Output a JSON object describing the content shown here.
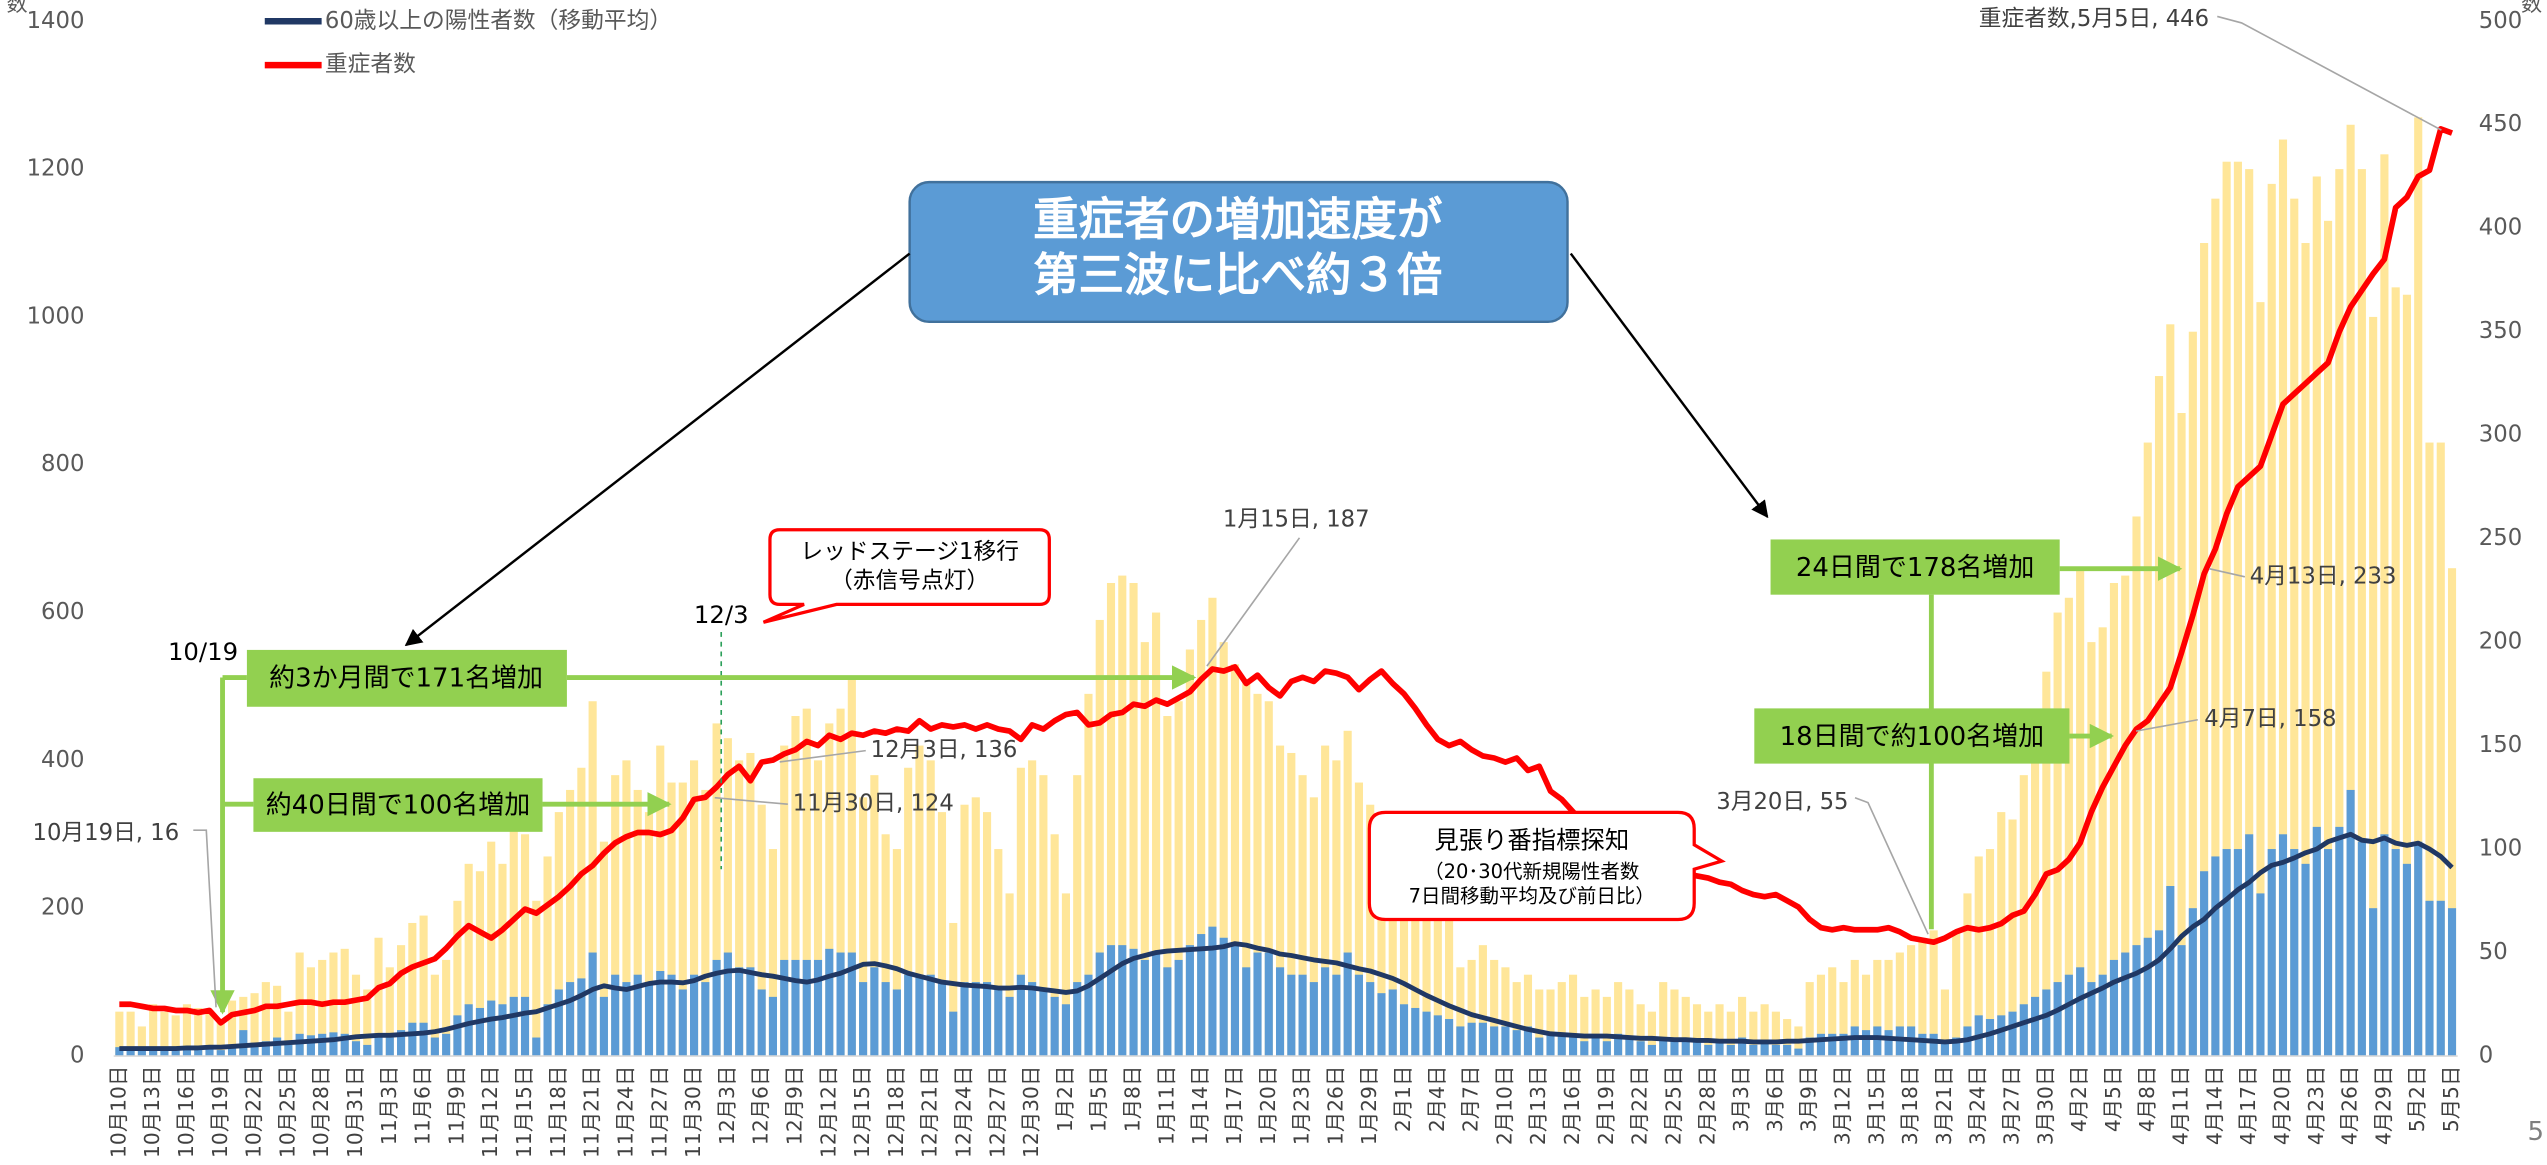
{
  "chart_data": {
    "type": "bar_line",
    "y_label": "数",
    "y2_label": "数",
    "categories": [
      "10月10日",
      null,
      null,
      "10月13日",
      null,
      null,
      "10月16日",
      null,
      null,
      "10月19日",
      null,
      null,
      "10月22日",
      null,
      null,
      "10月25日",
      null,
      null,
      "10月28日",
      null,
      null,
      "10月31日",
      null,
      null,
      "11月3日",
      null,
      null,
      "11月6日",
      null,
      null,
      "11月9日",
      null,
      null,
      "11月12日",
      null,
      null,
      "11月15日",
      null,
      null,
      "11月18日",
      null,
      null,
      "11月21日",
      null,
      null,
      "11月24日",
      null,
      null,
      "11月27日",
      null,
      null,
      "11月30日",
      null,
      null,
      "12月3日",
      null,
      null,
      "12月6日",
      null,
      null,
      "12月9日",
      null,
      null,
      "12月12日",
      null,
      null,
      "12月15日",
      null,
      null,
      "12月18日",
      null,
      null,
      "12月21日",
      null,
      null,
      "12月24日",
      null,
      null,
      "12月27日",
      null,
      null,
      "12月30日",
      null,
      null,
      "1月2日",
      null,
      null,
      "1月5日",
      null,
      null,
      "1月8日",
      null,
      null,
      "1月11日",
      null,
      null,
      "1月14日",
      null,
      null,
      "1月17日",
      null,
      null,
      "1月20日",
      null,
      null,
      "1月23日",
      null,
      null,
      "1月26日",
      null,
      null,
      "1月29日",
      null,
      null,
      "2月1日",
      null,
      null,
      "2月4日",
      null,
      null,
      "2月7日",
      null,
      null,
      "2月10日",
      null,
      null,
      "2月13日",
      null,
      null,
      "2月16日",
      null,
      null,
      "2月19日",
      null,
      null,
      "2月22日",
      null,
      null,
      "2月25日",
      null,
      null,
      "2月28日",
      null,
      null,
      "3月3日",
      null,
      null,
      "3月6日",
      null,
      null,
      "3月9日",
      null,
      null,
      "3月12日",
      null,
      null,
      "3月15日",
      null,
      null,
      "3月18日",
      null,
      null,
      "3月21日",
      null,
      null,
      "3月24日",
      null,
      null,
      "3月27日",
      null,
      null,
      "3月30日",
      null,
      null,
      "4月2日",
      null,
      null,
      "4月5日",
      null,
      null,
      "4月8日",
      null,
      null,
      "4月11日",
      null,
      null,
      "4月14日",
      null,
      null,
      "4月17日",
      null,
      null,
      "4月20日",
      null,
      null,
      "4月23日",
      null,
      null,
      "4月26日",
      null,
      null,
      "4月29日",
      null,
      null,
      "5月2日",
      null,
      null,
      "5月5日"
    ],
    "series": [
      {
        "type": "bar",
        "color": "#ffe699",
        "values": [
          60,
          60,
          40,
          70,
          60,
          55,
          70,
          65,
          60,
          50,
          75,
          80,
          85,
          100,
          95,
          60,
          140,
          120,
          130,
          140,
          145,
          110,
          90,
          160,
          120,
          150,
          180,
          190,
          110,
          130,
          210,
          260,
          250,
          290,
          260,
          310,
          300,
          210,
          270,
          330,
          360,
          390,
          480,
          290,
          380,
          400,
          360,
          330,
          420,
          370,
          370,
          400,
          360,
          450,
          430,
          400,
          410,
          340,
          280,
          420,
          460,
          470,
          400,
          450,
          470,
          510,
          350,
          380,
          300,
          280,
          390,
          420,
          400,
          330,
          180,
          340,
          350,
          330,
          280,
          220,
          390,
          400,
          380,
          300,
          220,
          380,
          490,
          590,
          640,
          650,
          640,
          560,
          600,
          460,
          480,
          550,
          590,
          620,
          560,
          530,
          510,
          490,
          480,
          420,
          410,
          380,
          350,
          420,
          400,
          440,
          370,
          340,
          290,
          300,
          230,
          240,
          210,
          200,
          190,
          120,
          130,
          150,
          130,
          120,
          100,
          110,
          90,
          90,
          100,
          110,
          80,
          90,
          80,
          100,
          90,
          70,
          60,
          100,
          90,
          80,
          70,
          60,
          70,
          60,
          80,
          60,
          70,
          60,
          50,
          40,
          100,
          110,
          120,
          100,
          130,
          110,
          130,
          130,
          140,
          150,
          160,
          170,
          90,
          170,
          220,
          270,
          280,
          330,
          320,
          380,
          420,
          520,
          600,
          620,
          660,
          560,
          580,
          640,
          650,
          730,
          830,
          920,
          990,
          870,
          980,
          1100,
          1160,
          1210,
          1210,
          1200,
          1020,
          1180,
          1240,
          1160,
          1100,
          1190,
          1130,
          1200,
          1260,
          1200,
          1000,
          1220,
          1040,
          1030,
          1270,
          830,
          830,
          660
        ]
      },
      {
        "type": "bar",
        "color": "#5b9bd5",
        "values": [
          12,
          10,
          8,
          12,
          10,
          8,
          12,
          10,
          12,
          8,
          15,
          35,
          18,
          20,
          25,
          15,
          30,
          28,
          30,
          32,
          30,
          20,
          15,
          30,
          25,
          35,
          45,
          45,
          25,
          30,
          55,
          70,
          65,
          75,
          70,
          80,
          80,
          25,
          70,
          90,
          100,
          105,
          140,
          80,
          110,
          100,
          110,
          100,
          115,
          110,
          90,
          110,
          100,
          130,
          140,
          120,
          120,
          90,
          80,
          130,
          130,
          130,
          130,
          145,
          140,
          140,
          100,
          120,
          100,
          90,
          110,
          110,
          110,
          100,
          60,
          100,
          100,
          100,
          90,
          80,
          110,
          100,
          90,
          80,
          70,
          100,
          110,
          140,
          150,
          150,
          145,
          130,
          140,
          120,
          130,
          150,
          165,
          175,
          160,
          150,
          120,
          140,
          140,
          120,
          110,
          110,
          100,
          120,
          110,
          140,
          110,
          100,
          85,
          90,
          70,
          65,
          60,
          55,
          50,
          40,
          45,
          45,
          40,
          40,
          35,
          40,
          25,
          30,
          30,
          30,
          20,
          25,
          20,
          30,
          25,
          20,
          15,
          25,
          25,
          20,
          20,
          15,
          20,
          15,
          25,
          15,
          20,
          15,
          15,
          10,
          25,
          30,
          30,
          30,
          40,
          35,
          40,
          35,
          40,
          40,
          30,
          30,
          20,
          25,
          40,
          55,
          50,
          55,
          60,
          70,
          80,
          90,
          100,
          110,
          120,
          100,
          110,
          130,
          140,
          150,
          160,
          170,
          230,
          150,
          200,
          250,
          270,
          280,
          280,
          300,
          220,
          280,
          300,
          280,
          260,
          310,
          280,
          310,
          360,
          290,
          200,
          300,
          280,
          260,
          290,
          210,
          210,
          200
        ]
      },
      {
        "type": "line",
        "name": "60歳以上の陽性者数（移動平均）",
        "color": "#203864",
        "values": [
          10,
          10,
          10,
          10,
          10,
          10,
          11,
          11,
          12,
          12,
          13,
          14,
          15,
          16,
          17,
          18,
          19,
          20,
          21,
          22,
          24,
          26,
          27,
          28,
          28,
          29,
          30,
          31,
          33,
          36,
          40,
          44,
          47,
          50,
          52,
          55,
          58,
          60,
          65,
          70,
          75,
          82,
          90,
          95,
          92,
          90,
          94,
          98,
          100,
          100,
          99,
          102,
          108,
          112,
          115,
          116,
          113,
          110,
          108,
          105,
          102,
          100,
          103,
          108,
          112,
          118,
          124,
          125,
          122,
          118,
          112,
          108,
          104,
          100,
          98,
          96,
          95,
          94,
          92,
          92,
          93,
          92,
          90,
          88,
          86,
          88,
          95,
          105,
          115,
          125,
          132,
          136,
          140,
          142,
          143,
          144,
          145,
          146,
          148,
          152,
          150,
          146,
          143,
          138,
          136,
          133,
          130,
          128,
          126,
          122,
          118,
          115,
          110,
          105,
          98,
          90,
          82,
          75,
          68,
          62,
          56,
          52,
          48,
          44,
          40,
          36,
          33,
          30,
          29,
          28,
          27,
          27,
          27,
          26,
          25,
          24,
          24,
          23,
          22,
          22,
          21,
          21,
          20,
          20,
          20,
          19,
          19,
          19,
          20,
          20,
          21,
          22,
          23,
          24,
          25,
          25,
          25,
          24,
          23,
          22,
          21,
          20,
          19,
          20,
          22,
          26,
          30,
          35,
          40,
          45,
          50,
          55,
          62,
          70,
          78,
          85,
          92,
          100,
          106,
          112,
          120,
          130,
          145,
          162,
          175,
          185,
          200,
          212,
          225,
          235,
          248,
          258,
          262,
          268,
          275,
          280,
          290,
          295,
          300,
          292,
          290,
          295,
          288,
          285,
          288,
          280,
          270,
          255
        ]
      },
      {
        "type": "line",
        "name": "重症者数",
        "axis": "y2",
        "color": "#ff0000",
        "values": [
          25,
          25,
          24,
          23,
          23,
          22,
          22,
          21,
          22,
          16,
          20,
          21,
          22,
          24,
          24,
          25,
          26,
          26,
          25,
          26,
          26,
          27,
          28,
          33,
          35,
          40,
          43,
          45,
          47,
          52,
          58,
          63,
          60,
          57,
          61,
          66,
          71,
          69,
          73,
          77,
          82,
          88,
          92,
          98,
          103,
          106,
          108,
          108,
          107,
          109,
          115,
          124,
          125,
          130,
          136,
          140,
          133,
          142,
          143,
          146,
          148,
          152,
          150,
          155,
          153,
          156,
          155,
          157,
          156,
          158,
          157,
          162,
          158,
          160,
          159,
          160,
          158,
          160,
          158,
          157,
          153,
          160,
          158,
          162,
          165,
          166,
          160,
          161,
          165,
          166,
          170,
          169,
          172,
          170,
          173,
          176,
          182,
          187,
          186,
          188,
          180,
          184,
          178,
          174,
          181,
          183,
          181,
          186,
          185,
          183,
          177,
          182,
          186,
          180,
          175,
          168,
          160,
          153,
          150,
          152,
          148,
          145,
          144,
          142,
          144,
          138,
          140,
          128,
          124,
          118,
          112,
          108,
          103,
          100,
          97,
          96,
          94,
          92,
          90,
          88,
          87,
          86,
          84,
          83,
          80,
          78,
          77,
          78,
          75,
          72,
          66,
          62,
          61,
          62,
          61,
          61,
          61,
          62,
          60,
          57,
          56,
          55,
          57,
          60,
          62,
          61,
          62,
          64,
          68,
          70,
          78,
          88,
          90,
          95,
          103,
          118,
          130,
          140,
          150,
          158,
          162,
          170,
          178,
          195,
          213,
          233,
          245,
          262,
          275,
          280,
          285,
          300,
          315,
          320,
          325,
          330,
          335,
          350,
          362,
          370,
          378,
          385,
          410,
          415,
          425,
          428,
          448,
          446
        ]
      }
    ],
    "ylim": [
      0,
      1400
    ],
    "yticks": [
      0,
      200,
      400,
      600,
      800,
      1000,
      1200,
      1400
    ],
    "y2lim": [
      0,
      500
    ],
    "y2ticks": [
      0,
      50,
      100,
      150,
      200,
      250,
      300,
      350,
      400,
      450,
      500
    ],
    "grid": false,
    "legend": "top-left",
    "annotations": [
      "重症者数,5月5日, 446",
      "重症者の増加速度が",
      "第三波に比べ約３倍",
      "1月15日, 187",
      "レッドステージ1移行",
      "（赤信号点灯）",
      "12/3",
      "10/19",
      "約3か月間で171名増加",
      "約40日間で100名増加",
      "12月3日, 136",
      "11月30日, 124",
      "10月19日, 16",
      "24日間で178名増加",
      "4月13日, 233",
      "18日間で約100名増加",
      "4月7日, 158",
      "3月20日, 55",
      "見張り番指標探知",
      "（20･30代新規陽性者数",
      "7日間移動平均及び前日比）",
      "5"
    ]
  }
}
